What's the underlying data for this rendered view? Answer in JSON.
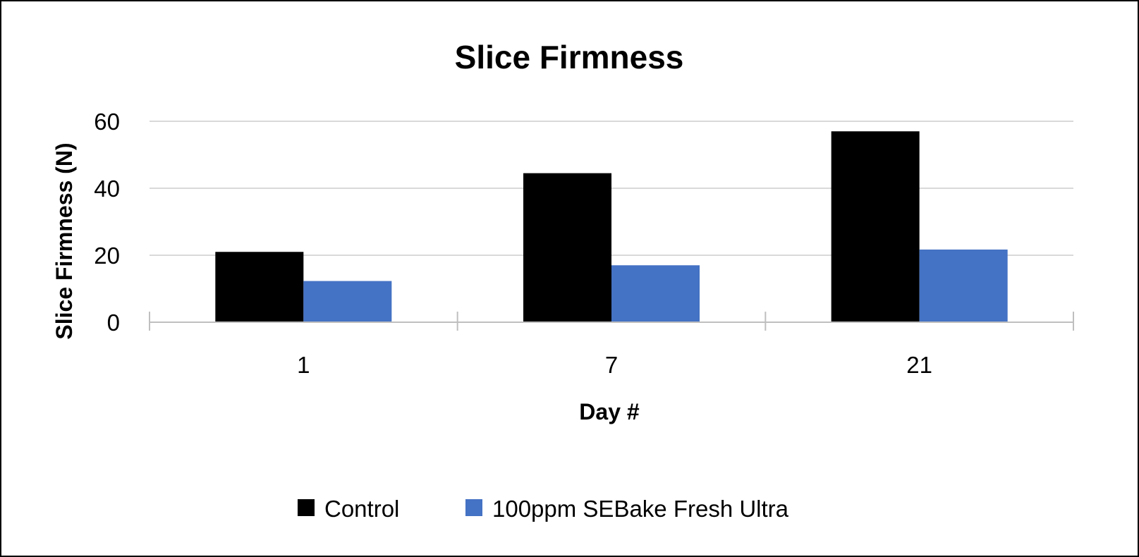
{
  "chart_data": {
    "type": "bar",
    "title": "Slice Firmness",
    "xlabel": "Day #",
    "ylabel": "Slice Firmness (N)",
    "categories": [
      "1",
      "7",
      "21"
    ],
    "series": [
      {
        "name": "Control",
        "values": [
          21,
          44.5,
          57
        ],
        "color": "#000000"
      },
      {
        "name": "100ppm SEBake Fresh Ultra",
        "values": [
          12.3,
          17,
          21.7
        ],
        "color": "#4472C4"
      }
    ],
    "ylim": [
      0,
      60
    ],
    "yticks": [
      0,
      20,
      40,
      60
    ],
    "grid": true,
    "legend_position": "bottom"
  }
}
